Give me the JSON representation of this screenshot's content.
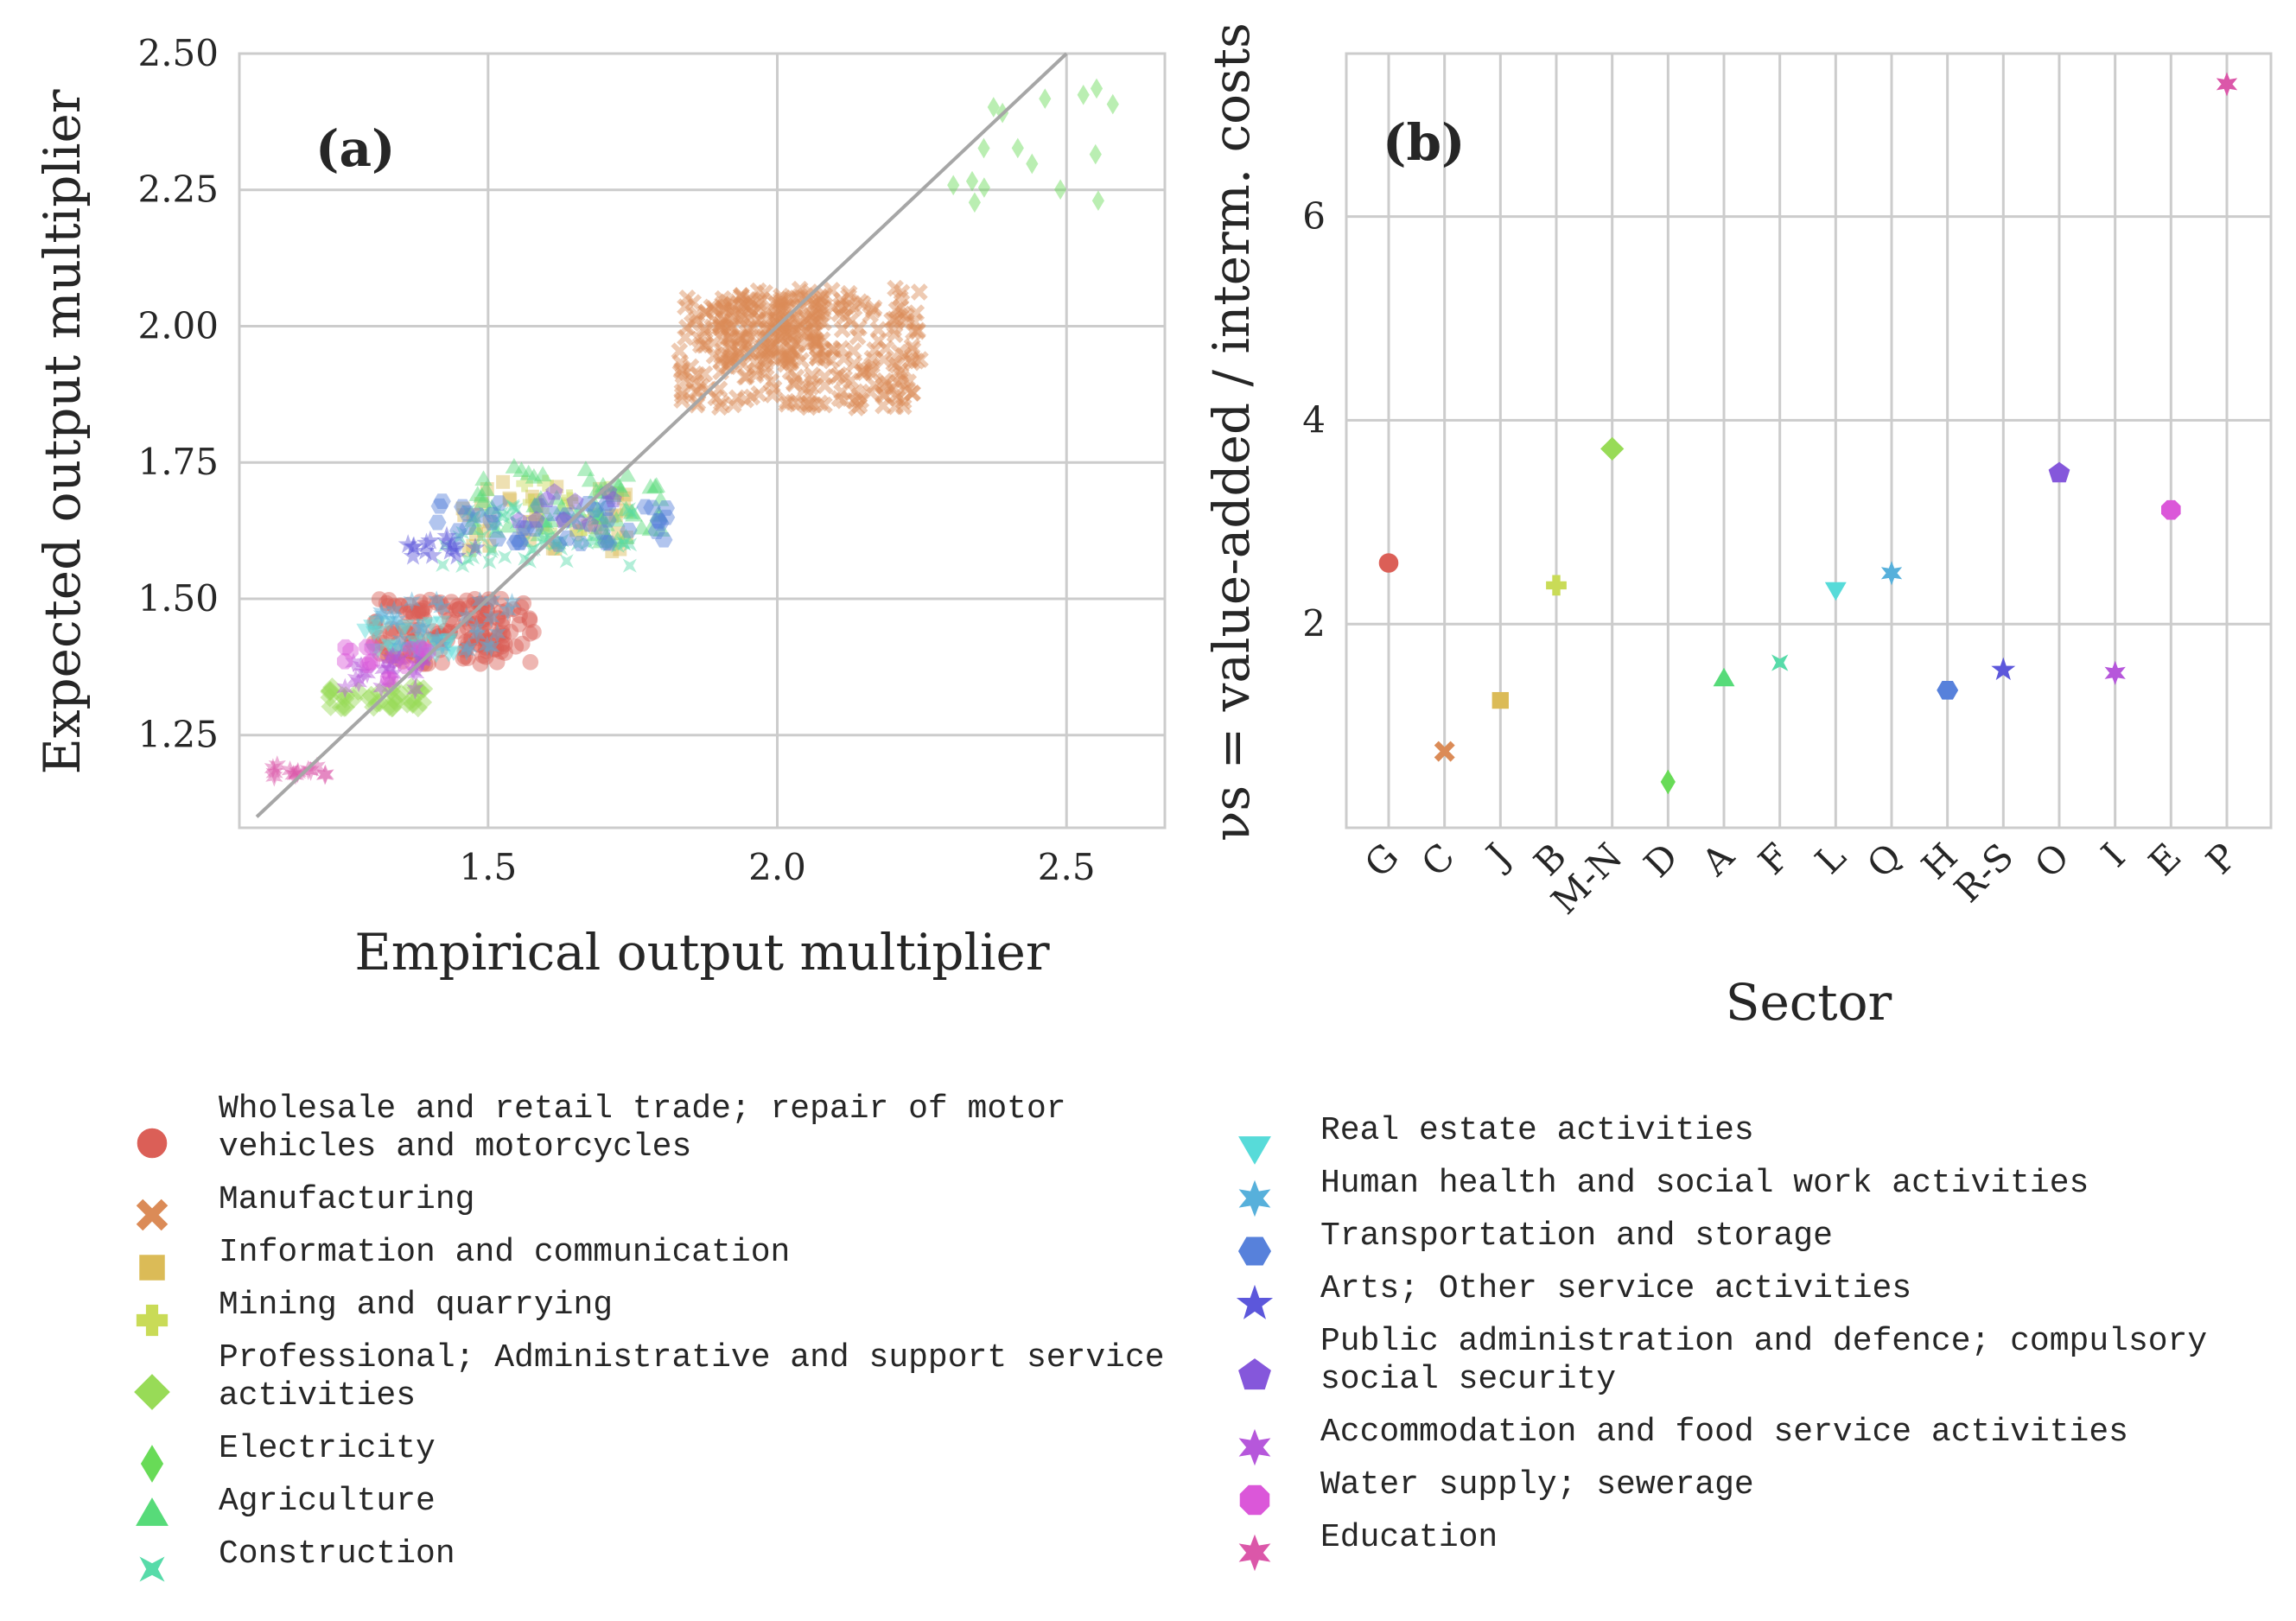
{
  "chart_data": [
    {
      "type": "scatter",
      "panel_label": "(a)",
      "xlabel": "Empirical output multiplier",
      "ylabel": "Expected output multiplier",
      "xlim": [
        1.07,
        2.67
      ],
      "ylim": [
        1.08,
        2.5
      ],
      "xticks": [
        1.5,
        2.0,
        2.5
      ],
      "xtick_labels": [
        "1.5",
        "2.0",
        "2.5"
      ],
      "yticks": [
        1.25,
        1.5,
        1.75,
        2.0,
        2.25,
        2.5
      ],
      "ytick_labels": [
        "1.25",
        "1.50",
        "1.75",
        "2.00",
        "2.25",
        "2.50"
      ],
      "grid": true,
      "reference_line": {
        "name": "y = x",
        "from": [
          1.1,
          1.1
        ],
        "to": [
          2.5,
          2.5
        ]
      },
      "clusters": [
        {
          "sector": "G",
          "x": [
            1.3,
            1.58
          ],
          "y": [
            1.38,
            1.5
          ],
          "n": 160
        },
        {
          "sector": "C",
          "x": [
            1.83,
            2.25
          ],
          "y": [
            1.85,
            2.07
          ],
          "n": 260
        },
        {
          "sector": "C",
          "x": [
            1.9,
            2.08
          ],
          "y": [
            1.93,
            2.06
          ],
          "n": 120
        },
        {
          "sector": "J",
          "x": [
            1.45,
            1.75
          ],
          "y": [
            1.58,
            1.72
          ],
          "n": 40
        },
        {
          "sector": "B",
          "x": [
            1.55,
            1.72
          ],
          "y": [
            1.62,
            1.72
          ],
          "n": 15
        },
        {
          "sector": "M-N",
          "x": [
            1.22,
            1.4
          ],
          "y": [
            1.3,
            1.34
          ],
          "n": 40
        },
        {
          "sector": "D",
          "x": [
            2.3,
            2.6
          ],
          "y": [
            2.22,
            2.44
          ],
          "n": 16
        },
        {
          "sector": "A",
          "x": [
            1.45,
            1.8
          ],
          "y": [
            1.6,
            1.74
          ],
          "n": 60
        },
        {
          "sector": "F",
          "x": [
            1.42,
            1.75
          ],
          "y": [
            1.56,
            1.68
          ],
          "n": 60
        },
        {
          "sector": "L",
          "x": [
            1.28,
            1.45
          ],
          "y": [
            1.4,
            1.46
          ],
          "n": 30
        },
        {
          "sector": "Q",
          "x": [
            1.3,
            1.55
          ],
          "y": [
            1.4,
            1.5
          ],
          "n": 30
        },
        {
          "sector": "H",
          "x": [
            1.4,
            1.82
          ],
          "y": [
            1.6,
            1.68
          ],
          "n": 45
        },
        {
          "sector": "R-S",
          "x": [
            1.36,
            1.5
          ],
          "y": [
            1.57,
            1.62
          ],
          "n": 15
        },
        {
          "sector": "O",
          "x": [
            1.55,
            1.72
          ],
          "y": [
            1.62,
            1.7
          ],
          "n": 10
        },
        {
          "sector": "I",
          "x": [
            1.25,
            1.4
          ],
          "y": [
            1.33,
            1.4
          ],
          "n": 25
        },
        {
          "sector": "E",
          "x": [
            1.25,
            1.4
          ],
          "y": [
            1.35,
            1.42
          ],
          "n": 15
        },
        {
          "sector": "P",
          "x": [
            1.12,
            1.22
          ],
          "y": [
            1.17,
            1.2
          ],
          "n": 14
        }
      ]
    },
    {
      "type": "scatter",
      "panel_label": "(b)",
      "xlabel": "Sector",
      "ylabel": "νs = value-added / interm. costs",
      "ylim": [
        0.0,
        7.6
      ],
      "yticks": [
        2,
        4,
        6
      ],
      "ytick_labels": [
        "2",
        "4",
        "6"
      ],
      "grid": true,
      "categories": [
        "G",
        "C",
        "J",
        "B",
        "M-N",
        "D",
        "A",
        "F",
        "L",
        "Q",
        "H",
        "R-S",
        "O",
        "I",
        "E",
        "P"
      ],
      "values": [
        2.6,
        0.75,
        1.25,
        2.38,
        3.72,
        0.45,
        1.45,
        1.62,
        2.35,
        2.5,
        1.35,
        1.55,
        3.48,
        1.52,
        3.12,
        7.3
      ]
    }
  ],
  "legend": {
    "left": [
      {
        "code": "G",
        "label_lines": [
          "Wholesale and retail trade; repair of motor",
          "vehicles and motorcycles"
        ],
        "color": "#db5f57",
        "marker": "circle"
      },
      {
        "code": "C",
        "label_lines": [
          "Manufacturing"
        ],
        "color": "#db8b57",
        "marker": "x"
      },
      {
        "code": "J",
        "label_lines": [
          "Information and communication"
        ],
        "color": "#dbbb57",
        "marker": "square"
      },
      {
        "code": "B",
        "label_lines": [
          "Mining and quarrying"
        ],
        "color": "#c9db57",
        "marker": "plus"
      },
      {
        "code": "M-N",
        "label_lines": [
          "Professional; Administrative and support service",
          "activities"
        ],
        "color": "#98db57",
        "marker": "diamond"
      },
      {
        "code": "D",
        "label_lines": [
          "Electricity"
        ],
        "color": "#68db57",
        "marker": "thin-diamond"
      },
      {
        "code": "A",
        "label_lines": [
          "Agriculture"
        ],
        "color": "#57db79",
        "marker": "triangle-up"
      },
      {
        "code": "F",
        "label_lines": [
          "Construction"
        ],
        "color": "#57dba9",
        "marker": "hourglass"
      }
    ],
    "right": [
      {
        "code": "L",
        "label_lines": [
          "Real estate activities"
        ],
        "color": "#57dbd9",
        "marker": "triangle-down"
      },
      {
        "code": "Q",
        "label_lines": [
          "Human health and social work activities"
        ],
        "color": "#57b0db",
        "marker": "asterisk"
      },
      {
        "code": "H",
        "label_lines": [
          "Transportation and storage"
        ],
        "color": "#5781db",
        "marker": "hexagon"
      },
      {
        "code": "R-S",
        "label_lines": [
          "Arts; Other service activities"
        ],
        "color": "#5c57db",
        "marker": "star"
      },
      {
        "code": "O",
        "label_lines": [
          "Public administration and defence; compulsory",
          "social security"
        ],
        "color": "#8557db",
        "marker": "pentagon"
      },
      {
        "code": "I",
        "label_lines": [
          "Accommodation and food service activities"
        ],
        "color": "#b657db",
        "marker": "asterisk"
      },
      {
        "code": "E",
        "label_lines": [
          "Water supply; sewerage"
        ],
        "color": "#db57d9",
        "marker": "octagon"
      },
      {
        "code": "P",
        "label_lines": [
          "Education"
        ],
        "color": "#db57a9",
        "marker": "asterisk"
      }
    ]
  }
}
